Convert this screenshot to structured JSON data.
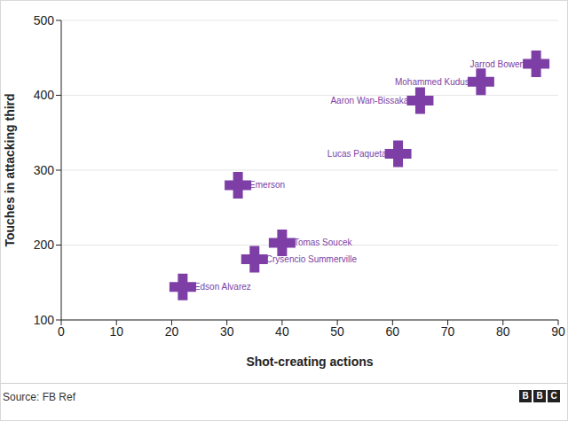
{
  "chart_data": {
    "type": "scatter",
    "x_label": "Shot-creating actions",
    "y_label": "Touches in attacking third",
    "labels": [
      "Jarrod Bowen",
      "Mohammed Kudus",
      "Aaron Wan-Bissaka",
      "Lucas Paqueta",
      "Emerson",
      "Tomas Soucek",
      "Crysencio Summerville",
      "Edson Alvarez"
    ],
    "x": [
      86,
      76,
      65,
      61,
      32,
      40,
      35,
      22
    ],
    "values": [
      442,
      418,
      393,
      322,
      280,
      203,
      181,
      144
    ],
    "xlim": [
      0,
      90
    ],
    "xticks": [
      0,
      10,
      20,
      30,
      40,
      50,
      60,
      70,
      80,
      90
    ],
    "ylim": [
      100,
      500
    ],
    "yticks": [
      100,
      200,
      300,
      400,
      500
    ],
    "grid": true,
    "color": "#7d3fa5",
    "marker": "plus",
    "source": "Source: FB Ref",
    "logo": "BBC"
  }
}
